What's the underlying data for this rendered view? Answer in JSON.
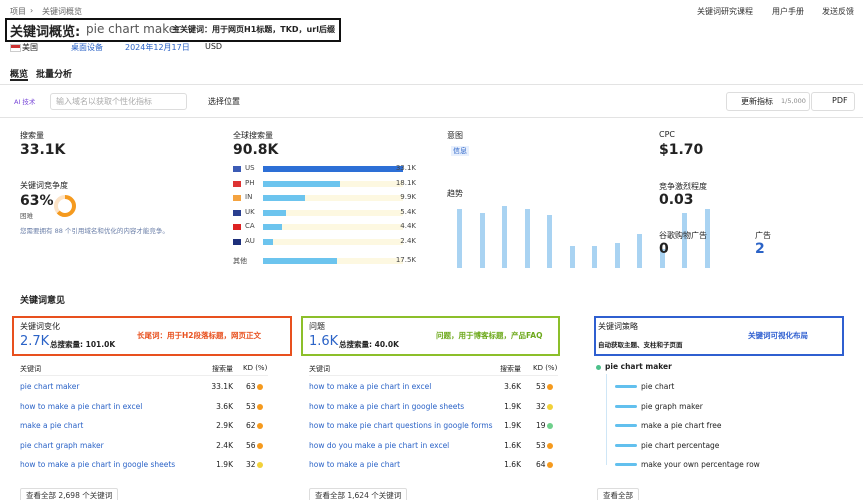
{
  "breadcrumb": [
    "项目",
    "关键词概览"
  ],
  "top_links": [
    "关键词研究课程",
    "用户手册",
    "发送反馈"
  ],
  "header": {
    "title": "关键词概览:",
    "keyword": "pie chart maker",
    "annotation": "主关键词：用于网页H1标题，TKD，url后缀"
  },
  "filters": {
    "country": "美国",
    "device": "桌面设备",
    "date": "2024年12月17日",
    "currency": "USD"
  },
  "tabs": [
    "概览",
    "批量分析"
  ],
  "toolbar": {
    "ai": "AI 技术",
    "placeholder": "输入域名以获取个性化指标",
    "location": "选择位置",
    "update": "更新指标",
    "quota": "1/5,000",
    "export": "PDF"
  },
  "metrics": {
    "volume": {
      "label": "搜索量",
      "value": "33.1K"
    },
    "difficulty": {
      "label": "关键词竞争度",
      "value": 63,
      "value_label": "63%",
      "level": "困难",
      "note": "您需要拥有 88 个引用域名和优化的内容才能竞争。"
    },
    "global": {
      "label": "全球搜索量",
      "value": "90.8K",
      "countries": [
        {
          "code": "US",
          "value": 33100,
          "value_label": "33.1K"
        },
        {
          "code": "PH",
          "value": 18100,
          "value_label": "18.1K"
        },
        {
          "code": "IN",
          "value": 9900,
          "value_label": "9.9K"
        },
        {
          "code": "UK",
          "value": 5400,
          "value_label": "5.4K"
        },
        {
          "code": "CA",
          "value": 4400,
          "value_label": "4.4K"
        },
        {
          "code": "AU",
          "value": 2400,
          "value_label": "2.4K"
        }
      ],
      "other": {
        "label": "其他",
        "value": 17500,
        "value_label": "17.5K"
      }
    },
    "intent": {
      "label": "意图",
      "value": "信息"
    },
    "trend": {
      "label": "趋势",
      "values": [
        95,
        88,
        100,
        95,
        85,
        35,
        35,
        40,
        55,
        30,
        88,
        95
      ]
    },
    "cpc": {
      "label": "CPC",
      "value": "$1.70"
    },
    "competition": {
      "label": "竞争激烈程度",
      "value": 0.03
    },
    "shopping": {
      "label": "谷歌购物广告",
      "value": 0
    },
    "ads": {
      "label": "广告",
      "value": 2
    }
  },
  "ideas": {
    "title": "关键词意见",
    "variations": {
      "title": "关键词变化",
      "count": "2.7K",
      "total": "总搜索量: 101.0K",
      "annotation": "长尾词：用于H2段落标题，网页正文",
      "columns": [
        "关键词",
        "搜索量",
        "KD (%)"
      ],
      "rows": [
        {
          "keyword": "pie chart maker",
          "volume": "33.1K",
          "kd": 63
        },
        {
          "keyword": "how to make a pie chart in excel",
          "volume": "3.6K",
          "kd": 53
        },
        {
          "keyword": "make a pie chart",
          "volume": "2.9K",
          "kd": 62
        },
        {
          "keyword": "pie chart graph maker",
          "volume": "2.4K",
          "kd": 56
        },
        {
          "keyword": "how to make a pie chart in google sheets",
          "volume": "1.9K",
          "kd": 32
        }
      ],
      "view_all": "查看全部 2,698 个关键词"
    },
    "questions": {
      "title": "问题",
      "count": "1.6K",
      "total": "总搜索量: 40.0K",
      "annotation": "问题，用于博客标题，产品FAQ",
      "columns": [
        "关键词",
        "搜索量",
        "KD (%)"
      ],
      "rows": [
        {
          "keyword": "how to make a pie chart in excel",
          "volume": "3.6K",
          "kd": 53
        },
        {
          "keyword": "how to make a pie chart in google sheets",
          "volume": "1.9K",
          "kd": 32
        },
        {
          "keyword": "how to make pie chart questions in google forms",
          "volume": "1.9K",
          "kd": 19
        },
        {
          "keyword": "how do you make a pie chart in excel",
          "volume": "1.6K",
          "kd": 53
        },
        {
          "keyword": "how to make a pie chart",
          "volume": "1.6K",
          "kd": 64
        }
      ],
      "view_all": "查看全部 1,624 个关键词"
    },
    "strategy": {
      "title": "关键词策略",
      "subtitle": "自动获取主题、支柱和子页面",
      "annotation": "关键词可视化布局",
      "root": "pie chart maker",
      "children": [
        "pie chart",
        "pie graph maker",
        "make a pie chart free",
        "pie chart percentage",
        "make your own percentage row"
      ],
      "view_all": "查看全部"
    }
  }
}
